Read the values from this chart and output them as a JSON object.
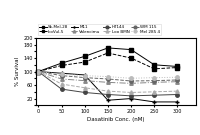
{
  "x": [
    0,
    50,
    100,
    150,
    200,
    250,
    300
  ],
  "series": [
    {
      "label": "Sk-Mel-28",
      "values": [
        100,
        125,
        145,
        170,
        165,
        120,
        115
      ],
      "color": "#000000",
      "marker": "s",
      "linestyle": "-",
      "markersize": 2.5,
      "linewidth": 0.7
    },
    {
      "label": "IcoVul-5",
      "values": [
        100,
        118,
        128,
        155,
        140,
        108,
        112
      ],
      "color": "#000000",
      "marker": "s",
      "linestyle": "--",
      "markersize": 2.5,
      "linewidth": 0.7
    },
    {
      "label": "M11",
      "values": [
        100,
        95,
        90,
        15,
        20,
        10,
        10
      ],
      "color": "#000000",
      "marker": "+",
      "linestyle": "-",
      "markersize": 3.5,
      "linewidth": 0.7
    },
    {
      "label": "Valencimu",
      "values": [
        100,
        78,
        73,
        68,
        65,
        68,
        70
      ],
      "color": "#888888",
      "marker": "^",
      "linestyle": "-.",
      "markersize": 2.5,
      "linewidth": 0.7
    },
    {
      "label": "HT144",
      "values": [
        100,
        48,
        38,
        32,
        28,
        30,
        32
      ],
      "color": "#444444",
      "marker": "o",
      "linestyle": "-",
      "markersize": 2.5,
      "linewidth": 0.7
    },
    {
      "label": "Loo BMN",
      "values": [
        100,
        63,
        52,
        42,
        38,
        40,
        42
      ],
      "color": "#aaaaaa",
      "marker": "^",
      "linestyle": "--",
      "markersize": 2.5,
      "linewidth": 0.7
    },
    {
      "label": "WM 115",
      "values": [
        100,
        88,
        82,
        78,
        72,
        73,
        75
      ],
      "color": "#666666",
      "marker": "o",
      "linestyle": "--",
      "markersize": 2.5,
      "linewidth": 0.7
    },
    {
      "label": "Mel 285 4",
      "values": [
        100,
        92,
        88,
        85,
        80,
        82,
        83
      ],
      "color": "#bbbbbb",
      "marker": "o",
      "linestyle": ":",
      "markersize": 2.5,
      "linewidth": 0.7
    }
  ],
  "xlabel": "Dasatinib Conc. (nM)",
  "ylabel": "% Survival",
  "xlim": [
    -5,
    340
  ],
  "ylim": [
    0,
    200
  ],
  "xticks": [
    0,
    50,
    100,
    150,
    200,
    250,
    300
  ],
  "xticklabels": [
    "0",
    "50",
    "100",
    "150",
    "200",
    "250",
    "300"
  ],
  "yticks": [
    0,
    20,
    40,
    60,
    80,
    100,
    120,
    140,
    160,
    180,
    200
  ],
  "yticklabels": [
    "",
    "20",
    "",
    "60",
    "",
    "100",
    "",
    "140",
    "",
    "180",
    "200"
  ]
}
